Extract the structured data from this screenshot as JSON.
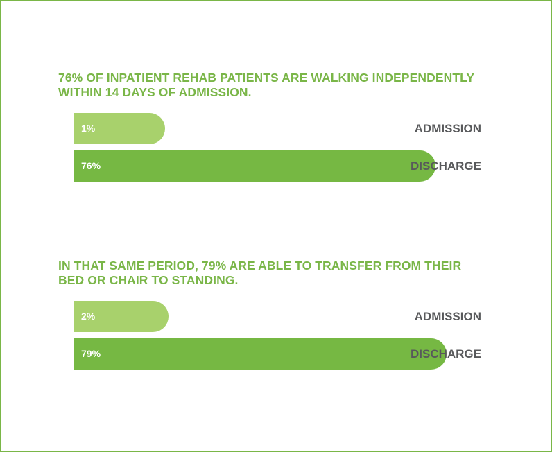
{
  "colors": {
    "border": "#7ab648",
    "heading": "#7ab648",
    "admission_bar": "#a8d16c",
    "discharge_bar": "#76b843",
    "label": "#58595b"
  },
  "chart_data": [
    {
      "type": "bar",
      "orientation": "horizontal",
      "title": "76% OF INPATIENT REHAB PATIENTS ARE WALKING INDEPENDENTLY WITHIN 14 DAYS OF ADMISSION.",
      "categories": [
        "ADMISSION",
        "DISCHARGE"
      ],
      "values": [
        1,
        76
      ],
      "value_labels": [
        "1%",
        "76%"
      ],
      "xlim": [
        0,
        100
      ],
      "grid": false,
      "legend": "none"
    },
    {
      "type": "bar",
      "orientation": "horizontal",
      "title": "IN THAT SAME PERIOD, 79% ARE ABLE TO TRANSFER FROM THEIR BED OR CHAIR TO STANDING.",
      "categories": [
        "ADMISSION",
        "DISCHARGE"
      ],
      "values": [
        2,
        79
      ],
      "value_labels": [
        "2%",
        "79%"
      ],
      "xlim": [
        0,
        100
      ],
      "grid": false,
      "legend": "none"
    }
  ]
}
